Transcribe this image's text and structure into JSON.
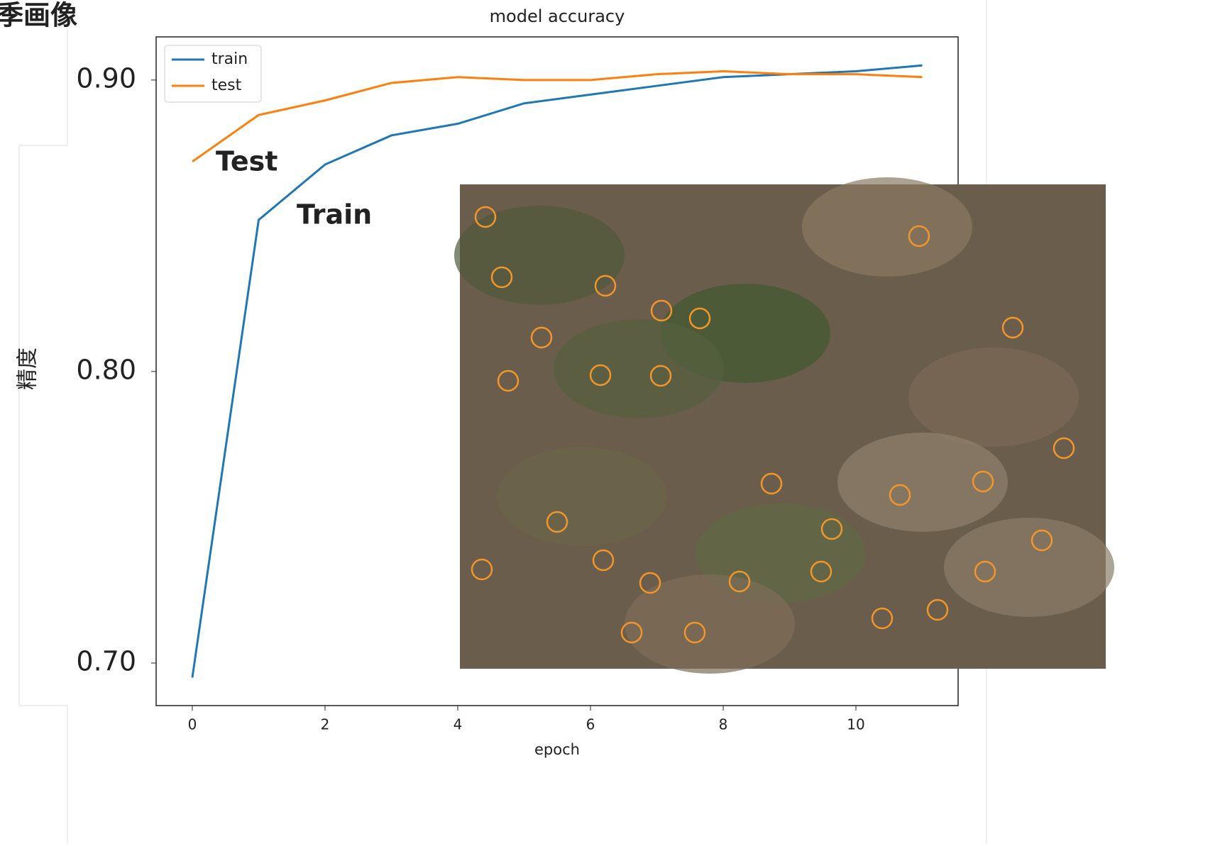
{
  "header_text": "季画像",
  "chart_data": {
    "type": "line",
    "title": "model accuracy",
    "x_label": "epoch",
    "y_label": "精度",
    "x": [
      0,
      1,
      2,
      3,
      4,
      5,
      6,
      7,
      8,
      9,
      10,
      11
    ],
    "series": [
      {
        "name": "train",
        "color": "#1f77b4",
        "values": [
          0.695,
          0.852,
          0.871,
          0.881,
          0.885,
          0.892,
          0.895,
          0.898,
          0.901,
          0.902,
          0.903,
          0.905
        ]
      },
      {
        "name": "test",
        "color": "#ff7f0e",
        "values": [
          0.872,
          0.888,
          0.893,
          0.899,
          0.901,
          0.9,
          0.9,
          0.902,
          0.903,
          0.902,
          0.902,
          0.901
        ]
      }
    ],
    "xlim": [
      -0.545,
      11.54
    ],
    "ylim": [
      0.6854,
      0.9148
    ],
    "xticks": [
      0,
      2,
      4,
      6,
      8,
      10
    ],
    "yticks": [
      {
        "value": 0.7,
        "label": "0.70"
      },
      {
        "value": 0.8,
        "label": "0.80"
      },
      {
        "value": 0.9,
        "label": "0.90"
      }
    ],
    "legend": "upper left",
    "annotations": [
      "Test",
      "Train"
    ]
  }
}
